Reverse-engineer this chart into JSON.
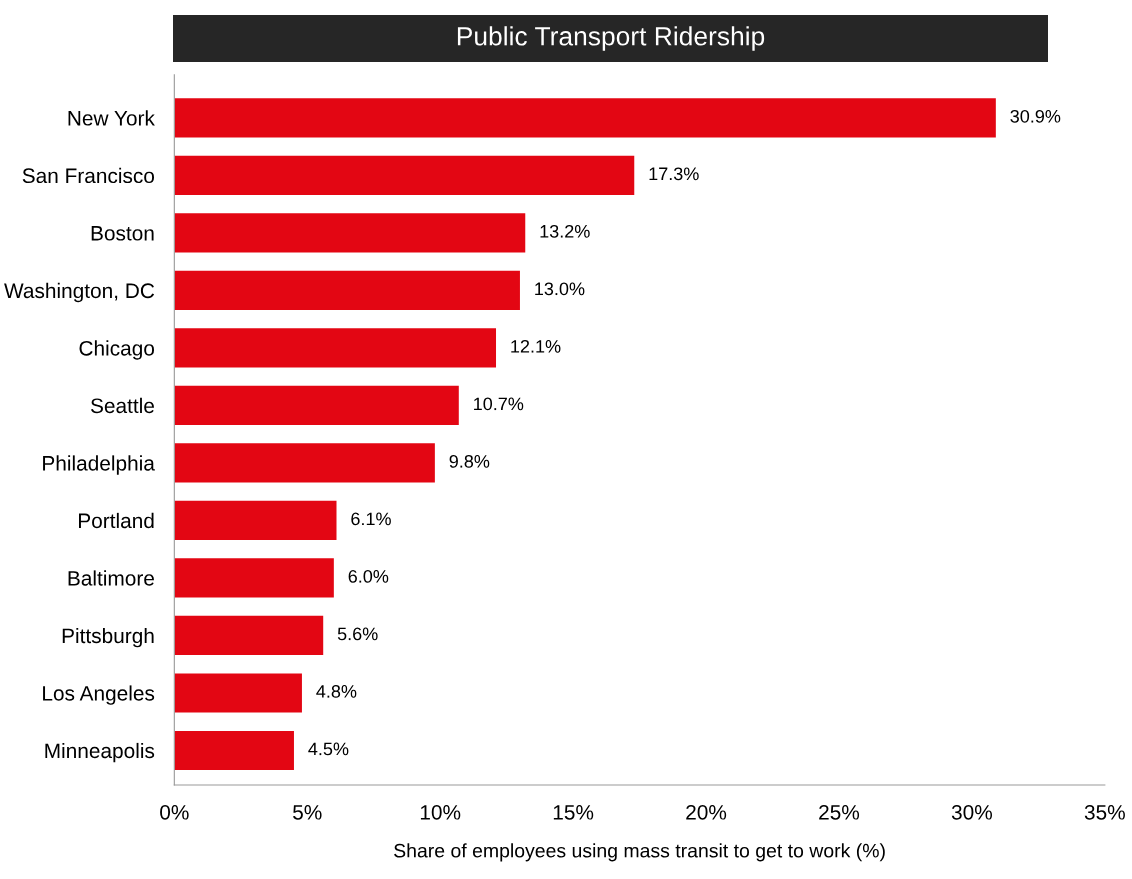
{
  "chart_data": {
    "type": "bar",
    "orientation": "horizontal",
    "title": "Public Transport Ridership",
    "xlabel": "Share of employees using mass transit to get to work (%)",
    "categories": [
      "New York",
      "San Francisco",
      "Boston",
      "Washington, DC",
      "Chicago",
      "Seattle",
      "Philadelphia",
      "Portland",
      "Baltimore",
      "Pittsburgh",
      "Los Angeles",
      "Minneapolis"
    ],
    "values": [
      30.9,
      17.3,
      13.2,
      13.0,
      12.1,
      10.7,
      9.8,
      6.1,
      6.0,
      5.6,
      4.8,
      4.5
    ],
    "value_labels": [
      "30.9%",
      "17.3%",
      "13.2%",
      "13.0%",
      "12.1%",
      "10.7%",
      "9.8%",
      "6.1%",
      "6.0%",
      "5.6%",
      "4.8%",
      "4.5%"
    ],
    "color": "#e30613",
    "xlim": [
      0,
      35
    ],
    "xticks": [
      {
        "value": 0,
        "label": "0%"
      },
      {
        "value": 5,
        "label": "5%"
      },
      {
        "value": 10,
        "label": "10%"
      },
      {
        "value": 15,
        "label": "15%"
      },
      {
        "value": 20,
        "label": "20%"
      },
      {
        "value": 25,
        "label": "25%"
      },
      {
        "value": 30,
        "label": "30%"
      },
      {
        "value": 35,
        "label": "35%"
      }
    ],
    "grid": false
  }
}
